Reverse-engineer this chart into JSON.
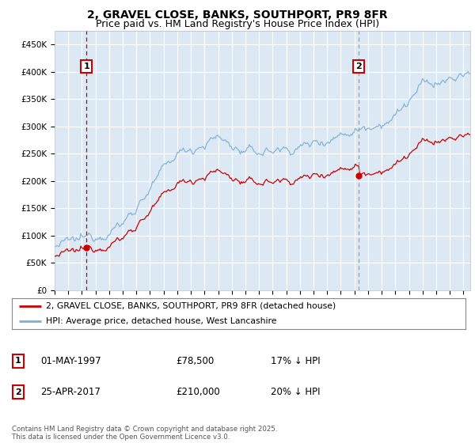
{
  "title": "2, GRAVEL CLOSE, BANKS, SOUTHPORT, PR9 8FR",
  "subtitle": "Price paid vs. HM Land Registry's House Price Index (HPI)",
  "ylim": [
    0,
    475000
  ],
  "yticks": [
    0,
    50000,
    100000,
    150000,
    200000,
    250000,
    300000,
    350000,
    400000,
    450000
  ],
  "ytick_labels": [
    "£0",
    "£50K",
    "£100K",
    "£150K",
    "£200K",
    "£250K",
    "£300K",
    "£350K",
    "£400K",
    "£450K"
  ],
  "xlim_start": 1995.0,
  "xlim_end": 2025.5,
  "plot_bg_color": "#dce9f5",
  "grid_color": "#ffffff",
  "hpi_color": "#7bafd4",
  "sale_color": "#cc0000",
  "ann1_x": 1997.33,
  "ann1_price": 78500,
  "ann1_label": "1",
  "ann1_line_color": "#cc0000",
  "ann1_line_style": "dashed",
  "ann2_x": 2017.32,
  "ann2_price": 210000,
  "ann2_label": "2",
  "ann2_line_color": "#aaaacc",
  "ann2_line_style": "dashed",
  "legend_label1": "2, GRAVEL CLOSE, BANKS, SOUTHPORT, PR9 8FR (detached house)",
  "legend_label2": "HPI: Average price, detached house, West Lancashire",
  "table_row1": [
    "1",
    "01-MAY-1997",
    "£78,500",
    "17% ↓ HPI"
  ],
  "table_row2": [
    "2",
    "25-APR-2017",
    "£210,000",
    "20% ↓ HPI"
  ],
  "footer": "Contains HM Land Registry data © Crown copyright and database right 2025.\nThis data is licensed under the Open Government Licence v3.0.",
  "title_fontsize": 10,
  "subtitle_fontsize": 9,
  "tick_fontsize": 7.5
}
